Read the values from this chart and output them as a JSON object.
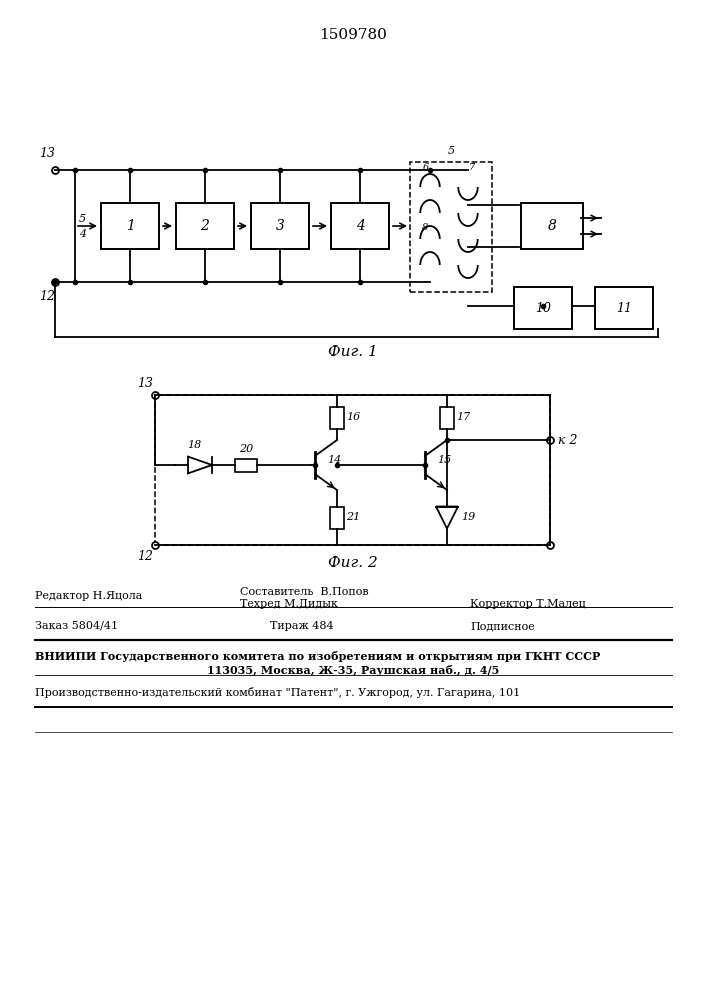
{
  "title": "1509780",
  "fig1_caption": "Фиг. 1",
  "fig2_caption": "Фиг. 2",
  "footer": {
    "line1_left": "Редактор Н.Яцола",
    "line1_mid_top": "Составитель  В.Попов",
    "line1_mid_bot": "Техред М.Дидык",
    "line1_right": "Корректор Т.Малец",
    "line2_col1": "Заказ 5804/41",
    "line2_col2": "Тираж 484",
    "line2_col3": "Подписное",
    "line3a": "ВНИИПИ Государственного комитета по изобретениям и открытиям при ГКНТ СССР",
    "line3b": "113035, Москва, Ж-35, Раушская наб., д. 4/5",
    "line4": "Производственно-издательский комбинат \"Патент\", г. Ужгород, ул. Гагарина, 101"
  }
}
